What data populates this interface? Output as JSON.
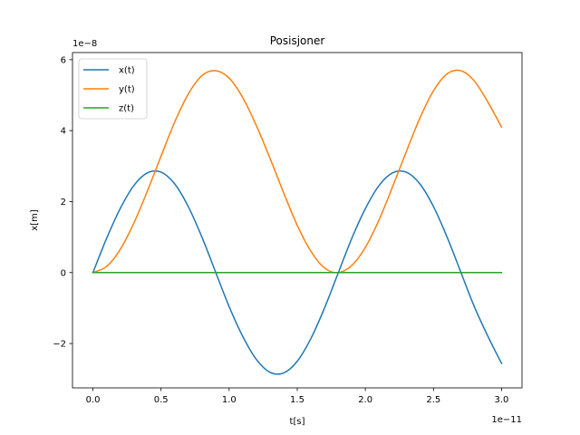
{
  "chart_data": {
    "type": "line",
    "title": "Posisjoner",
    "xlabel": "t[s]",
    "ylabel": "x[m]",
    "x_offset_text": "1e−11",
    "y_offset_text": "1e−8",
    "xlim": [
      -0.15,
      3.15
    ],
    "ylim": [
      -3.25,
      6.2
    ],
    "x_ticks": [
      0.0,
      0.5,
      1.0,
      1.5,
      2.0,
      2.5,
      3.0
    ],
    "x_tick_labels": [
      "0.0",
      "0.5",
      "1.0",
      "1.5",
      "2.0",
      "2.5",
      "3.0"
    ],
    "y_ticks": [
      -2,
      0,
      2,
      4,
      6
    ],
    "y_tick_labels": [
      "−2",
      "0",
      "2",
      "4",
      "6"
    ],
    "grid": false,
    "legend_position": "upper-left",
    "x": [
      0.0,
      0.1,
      0.2,
      0.3,
      0.4,
      0.5,
      0.6,
      0.7,
      0.8,
      0.9,
      1.0,
      1.1,
      1.2,
      1.3,
      1.4,
      1.5,
      1.6,
      1.7,
      1.8,
      1.9,
      2.0,
      2.1,
      2.2,
      2.3,
      2.4,
      2.5,
      2.6,
      2.7,
      2.8,
      2.9,
      3.0
    ],
    "series": [
      {
        "name": "x(t)",
        "color": "#1f77b4",
        "values": [
          0.0,
          0.96,
          1.8,
          2.45,
          2.81,
          2.83,
          2.5,
          1.86,
          1.0,
          0.02,
          -0.96,
          -1.8,
          -2.45,
          -2.81,
          -2.83,
          -2.5,
          -1.86,
          -1.0,
          -0.02,
          0.96,
          1.8,
          2.45,
          2.81,
          2.83,
          2.5,
          1.86,
          1.0,
          0.02,
          -0.96,
          -1.8,
          -2.56
        ]
      },
      {
        "name": "y(t)",
        "color": "#ff7f0e",
        "values": [
          0.0,
          0.17,
          0.65,
          1.39,
          2.3,
          3.28,
          4.24,
          5.03,
          5.55,
          5.69,
          5.48,
          4.93,
          4.14,
          3.22,
          2.25,
          1.33,
          0.6,
          0.13,
          0.0,
          0.2,
          0.71,
          1.48,
          2.42,
          3.4,
          4.35,
          5.12,
          5.6,
          5.69,
          5.4,
          4.8,
          4.1
        ]
      },
      {
        "name": "z(t)",
        "color": "#2ca02c",
        "values": [
          0.0,
          0.0,
          0.0,
          0.0,
          0.0,
          0.0,
          0.0,
          0.0,
          0.0,
          0.0,
          0.0,
          0.0,
          0.0,
          0.0,
          0.0,
          0.0,
          0.0,
          0.0,
          0.0,
          0.0,
          0.0,
          0.0,
          0.0,
          0.0,
          0.0,
          0.0,
          0.0,
          0.0,
          0.0,
          0.0,
          0.0
        ]
      }
    ]
  }
}
